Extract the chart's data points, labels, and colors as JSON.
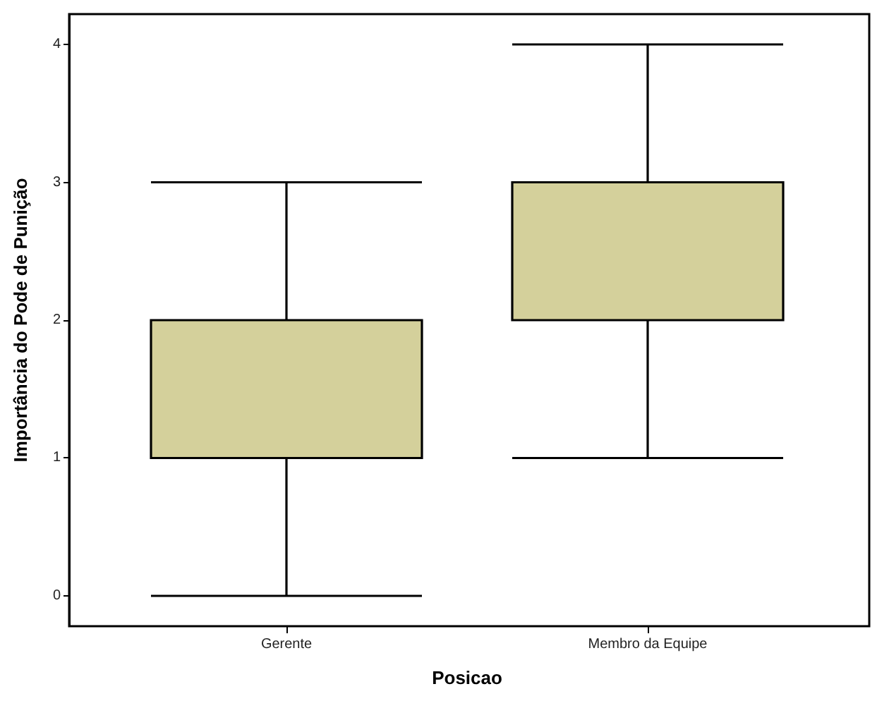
{
  "chart_data": {
    "type": "box",
    "xlabel": "Posicao",
    "ylabel": "Importância do Pode de Punição",
    "categories": [
      "Gerente",
      "Membro da Equipe"
    ],
    "series": [
      {
        "color": "#d4d09b",
        "boxes": [
          {
            "low": 0,
            "q1": 1,
            "median": 1,
            "q3": 2,
            "high": 3
          },
          {
            "low": 1,
            "q1": 2,
            "median": 2,
            "q3": 3,
            "high": 4
          }
        ]
      }
    ],
    "ylim": [
      -0.22,
      4.22
    ],
    "yticks": [
      0,
      1,
      2,
      3,
      4
    ]
  }
}
